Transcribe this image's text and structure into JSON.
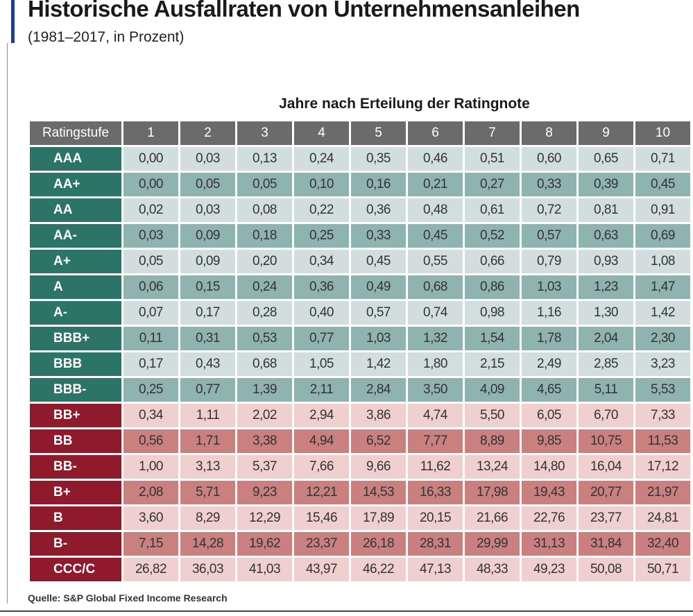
{
  "title": "Historische Ausfallraten von Unternehmensanleihen",
  "subtitle": "(1981–2017, in Prozent)",
  "source": "Quelle: S&P Global Fixed Income Research",
  "colors": {
    "accent": "#1f3f95",
    "header_bg": "#6b6b6b",
    "investment_label": "#2c7468",
    "investment_light": "#d2dede",
    "investment_dark": "#8fb3ae",
    "speculative_label": "#8e1a2b",
    "speculative_light": "#f0cfcf",
    "speculative_dark": "#c9807f"
  },
  "chart_data": {
    "type": "table",
    "title": "Historische Ausfallraten von Unternehmensanleihen",
    "subtitle": "(1981–2017, in Prozent)",
    "column_group_label": "Jahre nach Erteilung der Ratingnote",
    "row_header_label": "Ratingstufe",
    "columns": [
      "1",
      "2",
      "3",
      "4",
      "5",
      "6",
      "7",
      "8",
      "9",
      "10"
    ],
    "rows": [
      {
        "rating": "AAA",
        "group": "investment",
        "values": [
          "0,00",
          "0,03",
          "0,13",
          "0,24",
          "0,35",
          "0,46",
          "0,51",
          "0,60",
          "0,65",
          "0,71"
        ]
      },
      {
        "rating": "AA+",
        "group": "investment",
        "values": [
          "0,00",
          "0,05",
          "0,05",
          "0,10",
          "0,16",
          "0,21",
          "0,27",
          "0,33",
          "0,39",
          "0,45"
        ]
      },
      {
        "rating": "AA",
        "group": "investment",
        "values": [
          "0,02",
          "0,03",
          "0,08",
          "0,22",
          "0,36",
          "0,48",
          "0,61",
          "0,72",
          "0,81",
          "0,91"
        ]
      },
      {
        "rating": "AA-",
        "group": "investment",
        "values": [
          "0,03",
          "0,09",
          "0,18",
          "0,25",
          "0,33",
          "0,45",
          "0,52",
          "0,57",
          "0,63",
          "0,69"
        ]
      },
      {
        "rating": "A+",
        "group": "investment",
        "values": [
          "0,05",
          "0,09",
          "0,20",
          "0,34",
          "0,45",
          "0,55",
          "0,66",
          "0,79",
          "0,93",
          "1,08"
        ]
      },
      {
        "rating": "A",
        "group": "investment",
        "values": [
          "0,06",
          "0,15",
          "0,24",
          "0,36",
          "0,49",
          "0,68",
          "0,86",
          "1,03",
          "1,23",
          "1,47"
        ]
      },
      {
        "rating": "A-",
        "group": "investment",
        "values": [
          "0,07",
          "0,17",
          "0,28",
          "0,40",
          "0,57",
          "0,74",
          "0,98",
          "1,16",
          "1,30",
          "1,42"
        ]
      },
      {
        "rating": "BBB+",
        "group": "investment",
        "values": [
          "0,11",
          "0,31",
          "0,53",
          "0,77",
          "1,03",
          "1,32",
          "1,54",
          "1,78",
          "2,04",
          "2,30"
        ]
      },
      {
        "rating": "BBB",
        "group": "investment",
        "values": [
          "0,17",
          "0,43",
          "0,68",
          "1,05",
          "1,42",
          "1,80",
          "2,15",
          "2,49",
          "2,85",
          "3,23"
        ]
      },
      {
        "rating": "BBB-",
        "group": "investment",
        "values": [
          "0,25",
          "0,77",
          "1,39",
          "2,11",
          "2,84",
          "3,50",
          "4,09",
          "4,65",
          "5,11",
          "5,53"
        ]
      },
      {
        "rating": "BB+",
        "group": "speculative",
        "values": [
          "0,34",
          "1,11",
          "2,02",
          "2,94",
          "3,86",
          "4,74",
          "5,50",
          "6,05",
          "6,70",
          "7,33"
        ]
      },
      {
        "rating": "BB",
        "group": "speculative",
        "values": [
          "0,56",
          "1,71",
          "3,38",
          "4,94",
          "6,52",
          "7,77",
          "8,89",
          "9,85",
          "10,75",
          "11,53"
        ]
      },
      {
        "rating": "BB-",
        "group": "speculative",
        "values": [
          "1,00",
          "3,13",
          "5,37",
          "7,66",
          "9,66",
          "11,62",
          "13,24",
          "14,80",
          "16,04",
          "17,12"
        ]
      },
      {
        "rating": "B+",
        "group": "speculative",
        "values": [
          "2,08",
          "5,71",
          "9,23",
          "12,21",
          "14,53",
          "16,33",
          "17,98",
          "19,43",
          "20,77",
          "21,97"
        ]
      },
      {
        "rating": "B",
        "group": "speculative",
        "values": [
          "3,60",
          "8,29",
          "12,29",
          "15,46",
          "17,89",
          "20,15",
          "21,66",
          "22,76",
          "23,77",
          "24,81"
        ]
      },
      {
        "rating": "B-",
        "group": "speculative",
        "values": [
          "7,15",
          "14,28",
          "19,62",
          "23,37",
          "26,18",
          "28,31",
          "29,99",
          "31,13",
          "31,84",
          "32,40"
        ]
      },
      {
        "rating": "CCC/C",
        "group": "speculative",
        "values": [
          "26,82",
          "36,03",
          "41,03",
          "43,97",
          "46,22",
          "47,13",
          "48,33",
          "49,23",
          "50,08",
          "50,71"
        ]
      }
    ]
  }
}
